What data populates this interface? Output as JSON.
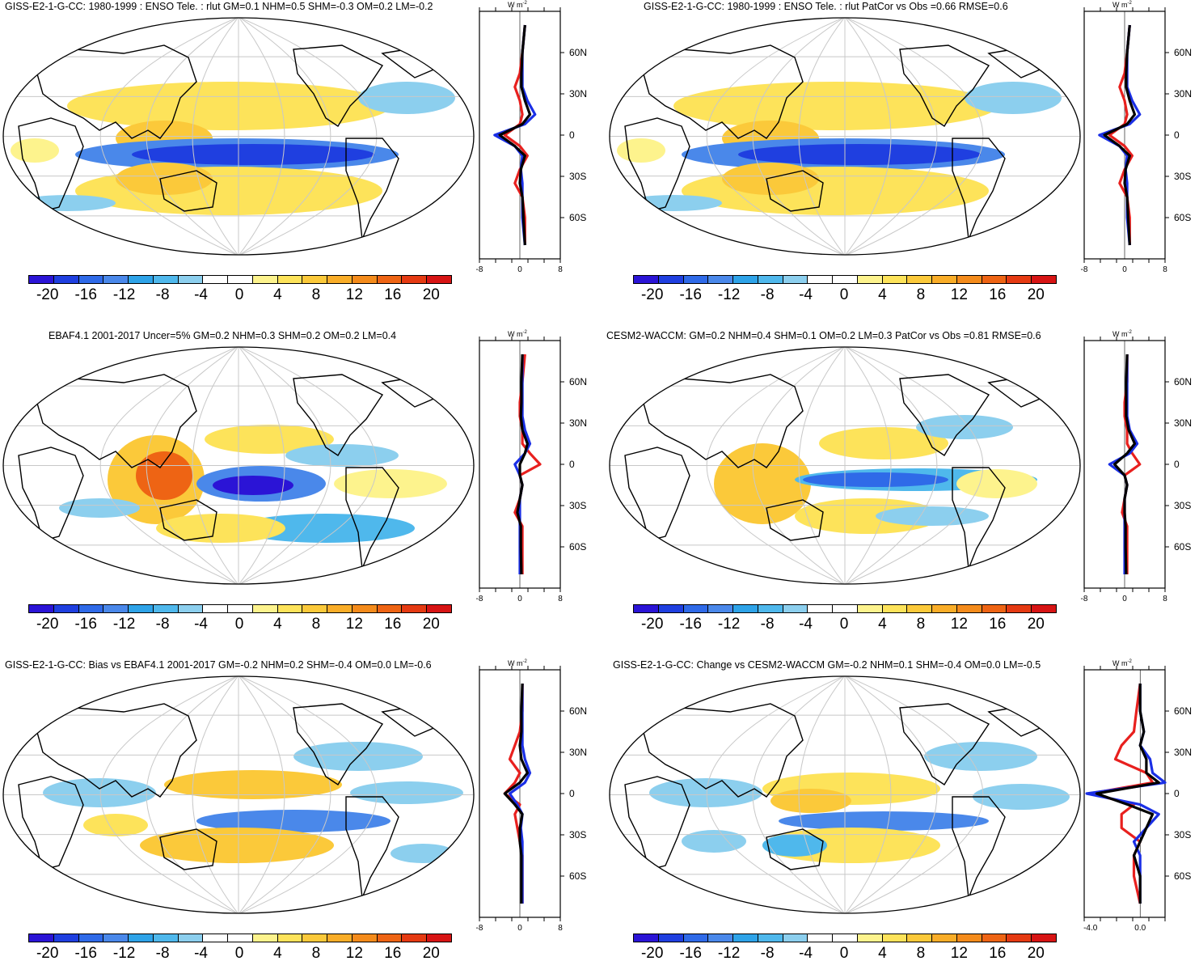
{
  "colorbar": {
    "colors": [
      "#2b14d6",
      "#1f3fe0",
      "#2f6ae8",
      "#4a88ea",
      "#2ea3e8",
      "#4fb8ec",
      "#8ccfee",
      "#ffffff",
      "#ffffff",
      "#fdf38d",
      "#fde35a",
      "#fbc93a",
      "#f9ad28",
      "#f48b1b",
      "#ee6414",
      "#e53a12",
      "#d71414"
    ],
    "labels": [
      "-20",
      "-16",
      "-12",
      "-8",
      "-4",
      "0",
      "4",
      "8",
      "12",
      "16",
      "20"
    ]
  },
  "zonal_units": "W m",
  "zonal_units_sup": "-2",
  "lat_labels": [
    "60N",
    "30N",
    "0",
    "30S",
    "60S"
  ],
  "panels": [
    {
      "title": "GISS-E2-1-G-CC: 1980-1999 : ENSO Tele. : rlut GM=0.1 NHM=0.5 SHM=-0.3 OM=0.2 LM=-0.2",
      "xticks": [
        "-8",
        "0",
        "8"
      ],
      "chart_data": {
        "type": "map",
        "variable": "rlut",
        "xlim": [
          -8,
          8
        ],
        "ylim": [
          -90,
          90
        ],
        "series": [
          {
            "name": "red",
            "lat": [
              80,
              60,
              45,
              35,
              25,
              15,
              8,
              0,
              -8,
              -15,
              -25,
              -35,
              -45,
              -60,
              -80
            ],
            "values": [
              1,
              0.5,
              0,
              -1,
              0,
              0.5,
              0,
              -3,
              0,
              1.5,
              0,
              -1,
              0.5,
              1,
              1
            ]
          },
          {
            "name": "blue",
            "lat": [
              80,
              60,
              45,
              35,
              25,
              15,
              8,
              0,
              -8,
              -15,
              -25,
              -35,
              -45,
              -60,
              -80
            ],
            "values": [
              1,
              0.5,
              0.5,
              0.5,
              1.5,
              3,
              1,
              -5,
              -1,
              0.5,
              0.2,
              0.5,
              0.5,
              0.5,
              1
            ]
          },
          {
            "name": "black",
            "lat": [
              80,
              60,
              45,
              35,
              25,
              15,
              8,
              0,
              -8,
              -15,
              -25,
              -35,
              -45,
              -60,
              -80
            ],
            "values": [
              1,
              0.5,
              0.3,
              0.3,
              1,
              2,
              0.5,
              -4,
              -1,
              1,
              0.2,
              0,
              0.5,
              0.7,
              1
            ]
          }
        ]
      }
    },
    {
      "title": "GISS-E2-1-G-CC: 1980-1999 : ENSO Tele. : rlut PatCor vs Obs =0.66 RMSE=0.6",
      "xticks": [
        "-8",
        "0",
        "8"
      ],
      "chart_data": {
        "type": "map",
        "variable": "rlut",
        "xlim": [
          -8,
          8
        ],
        "ylim": [
          -90,
          90
        ],
        "series": [
          {
            "name": "red",
            "lat": [
              80,
              60,
              45,
              35,
              25,
              15,
              8,
              0,
              -8,
              -15,
              -25,
              -35,
              -45,
              -60,
              -80
            ],
            "values": [
              1,
              0.5,
              0,
              -1,
              0,
              0.5,
              0,
              -3,
              0,
              1.5,
              0,
              -1,
              0.5,
              1,
              1
            ]
          },
          {
            "name": "blue",
            "lat": [
              80,
              60,
              45,
              35,
              25,
              15,
              8,
              0,
              -8,
              -15,
              -25,
              -35,
              -45,
              -60,
              -80
            ],
            "values": [
              1,
              0.5,
              0.5,
              0.5,
              1.5,
              3,
              1,
              -5,
              -1,
              0.5,
              0.2,
              0.5,
              0.5,
              0.5,
              1
            ]
          },
          {
            "name": "black",
            "lat": [
              80,
              60,
              45,
              35,
              25,
              15,
              8,
              0,
              -8,
              -15,
              -25,
              -35,
              -45,
              -60,
              -80
            ],
            "values": [
              1,
              0.5,
              0.3,
              0.3,
              1,
              2,
              0.5,
              -4,
              -1,
              1,
              0.2,
              0,
              0.5,
              0.7,
              1
            ]
          }
        ]
      }
    },
    {
      "title": "EBAF4.1 2001-2017 Uncer=5% GM=0.2 NHM=0.3 SHM=0.2 OM=0.2 LM=0.4",
      "xticks": [
        "-8",
        "0",
        "8"
      ],
      "chart_data": {
        "type": "map",
        "variable": "rlut",
        "xlim": [
          -8,
          8
        ],
        "ylim": [
          -90,
          90
        ],
        "series": [
          {
            "name": "red",
            "lat": [
              80,
              60,
              45,
              35,
              25,
              15,
              8,
              0,
              -8,
              -15,
              -25,
              -35,
              -45,
              -60,
              -80
            ],
            "values": [
              1,
              0.5,
              0,
              0,
              0.5,
              0.5,
              2,
              4,
              0,
              0.5,
              0,
              -1,
              0.5,
              0.5,
              0.5
            ]
          },
          {
            "name": "blue",
            "lat": [
              80,
              60,
              45,
              35,
              25,
              15,
              8,
              0,
              -8,
              -15,
              -25,
              -35,
              -45,
              -60,
              -80
            ],
            "values": [
              0.5,
              0.5,
              0.5,
              0.5,
              1,
              2,
              1,
              -1,
              0,
              0.5,
              0,
              0,
              0,
              0,
              0
            ]
          },
          {
            "name": "black",
            "lat": [
              80,
              60,
              45,
              35,
              25,
              15,
              8,
              0,
              -8,
              -15,
              -25,
              -35,
              -45,
              -60,
              -80
            ],
            "values": [
              0.5,
              0.3,
              0.3,
              0.2,
              0.5,
              1.5,
              1,
              0,
              0,
              0.5,
              0,
              -0.5,
              0.2,
              0.2,
              0.3
            ]
          }
        ]
      }
    },
    {
      "title": "CESM2-WACCM: GM=0.2 NHM=0.4 SHM=0.1 OM=0.2 LM=0.3 PatCor vs Obs =0.81 RMSE=0.6",
      "xticks": [
        "-8",
        "0",
        "8"
      ],
      "chart_data": {
        "type": "map",
        "variable": "rlut",
        "xlim": [
          -8,
          8
        ],
        "ylim": [
          -90,
          90
        ],
        "series": [
          {
            "name": "red",
            "lat": [
              80,
              60,
              45,
              35,
              25,
              15,
              8,
              0,
              -8,
              -15,
              -25,
              -35,
              -45,
              -60,
              -80
            ],
            "values": [
              0.5,
              0.5,
              0,
              0,
              0.5,
              0.5,
              1.5,
              3,
              0,
              0.5,
              0,
              -0.5,
              0.5,
              0.5,
              0.5
            ]
          },
          {
            "name": "blue",
            "lat": [
              80,
              60,
              45,
              35,
              25,
              15,
              8,
              0,
              -8,
              -15,
              -25,
              -35,
              -45,
              -60,
              -80
            ],
            "values": [
              0.5,
              0.5,
              0.5,
              0.5,
              1,
              2.5,
              1,
              -3,
              0,
              0.5,
              0,
              0,
              0,
              0,
              0
            ]
          },
          {
            "name": "black",
            "lat": [
              80,
              60,
              45,
              35,
              25,
              15,
              8,
              0,
              -8,
              -15,
              -25,
              -35,
              -45,
              -60,
              -80
            ],
            "values": [
              0.5,
              0.3,
              0.3,
              0.3,
              0.8,
              2,
              0.5,
              -2,
              0,
              0.5,
              0,
              0,
              0.2,
              0.2,
              0.3
            ]
          }
        ]
      }
    },
    {
      "title": "GISS-E2-1-G-CC: Bias vs EBAF4.1 2001-2017 GM=-0.2 NHM=0.2 SHM=-0.4 OM=0.0 LM=-0.6",
      "xticks": [
        "-8",
        "0",
        "8"
      ],
      "chart_data": {
        "type": "map",
        "variable": "rlut bias",
        "xlim": [
          -8,
          8
        ],
        "ylim": [
          -90,
          90
        ],
        "series": [
          {
            "name": "red",
            "lat": [
              80,
              60,
              45,
              35,
              25,
              15,
              8,
              0,
              -8,
              -15,
              -25,
              -35,
              -45,
              -60,
              -80
            ],
            "values": [
              0.5,
              0.5,
              0,
              -1,
              -2,
              0,
              -1,
              -3,
              0,
              -1,
              -0.5,
              0,
              0.5,
              0.5,
              0.5
            ]
          },
          {
            "name": "blue",
            "lat": [
              80,
              60,
              45,
              35,
              25,
              15,
              8,
              0,
              -8,
              -15,
              -25,
              -35,
              -45,
              -60,
              -80
            ],
            "values": [
              0.5,
              0.5,
              0.5,
              0.5,
              1,
              2,
              1,
              -2,
              -0.5,
              0.5,
              0.2,
              0.5,
              0.5,
              0.5,
              0.5
            ]
          },
          {
            "name": "black",
            "lat": [
              80,
              60,
              45,
              35,
              25,
              15,
              8,
              0,
              -8,
              -15,
              -25,
              -35,
              -45,
              -60,
              -80
            ],
            "values": [
              0.5,
              0.3,
              0.3,
              0,
              0.3,
              1.5,
              0,
              -3,
              -1,
              0.5,
              0,
              0,
              0.3,
              0.3,
              0.3
            ]
          }
        ]
      }
    },
    {
      "title": "GISS-E2-1-G-CC: Change vs CESM2-WACCM GM=-0.2 NHM=0.1 SHM=-0.4 OM=0.0 LM=-0.5",
      "xticks": [
        "-4.0",
        "0.0"
      ],
      "chart_data": {
        "type": "map",
        "variable": "rlut change",
        "xlim": [
          -4.5,
          2
        ],
        "ylim": [
          -90,
          90
        ],
        "series": [
          {
            "name": "red",
            "lat": [
              80,
              60,
              45,
              35,
              25,
              15,
              8,
              0,
              -8,
              -15,
              -25,
              -35,
              -45,
              -60,
              -80
            ],
            "values": [
              0,
              -0.3,
              -0.5,
              -1.5,
              -2,
              0.5,
              1,
              -4,
              -0.5,
              -1.5,
              -1.5,
              0,
              -0.5,
              -0.5,
              0
            ]
          },
          {
            "name": "blue",
            "lat": [
              80,
              60,
              45,
              35,
              25,
              15,
              8,
              0,
              -8,
              -15,
              -25,
              -35,
              -45,
              -60,
              -80
            ],
            "values": [
              0,
              0,
              0.3,
              0,
              0.8,
              1,
              2,
              -4.3,
              0,
              1.5,
              0.5,
              -0.5,
              0,
              0,
              0
            ]
          },
          {
            "name": "black",
            "lat": [
              80,
              60,
              45,
              35,
              25,
              15,
              8,
              0,
              -8,
              -15,
              -25,
              -35,
              -45,
              -60,
              -80
            ],
            "values": [
              0,
              0,
              0.3,
              0,
              0.5,
              0.5,
              1.5,
              -3.5,
              -1,
              1,
              0.5,
              0,
              -0.5,
              0,
              0
            ]
          }
        ]
      }
    }
  ]
}
